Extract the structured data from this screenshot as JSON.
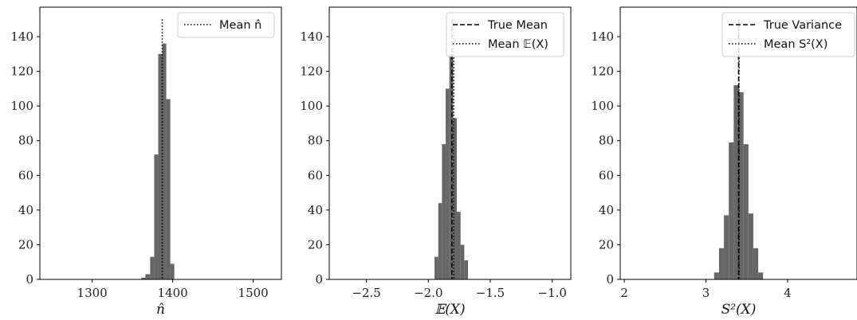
{
  "chart_data": [
    {
      "type": "bar",
      "xlabel": "n̂",
      "xlim": [
        1235,
        1535
      ],
      "ylim": [
        0,
        157
      ],
      "xticks": [
        1300,
        1400,
        1500
      ],
      "xtick_labels": [
        "1300",
        "1400",
        "1500"
      ],
      "yticks": [
        0,
        20,
        40,
        60,
        80,
        100,
        120,
        140
      ],
      "ytick_labels": [
        "0",
        "20",
        "40",
        "60",
        "80",
        "100",
        "120",
        "140"
      ],
      "bar_color": "#666666",
      "bins": [
        {
          "x0": 1361,
          "x1": 1366,
          "value": 1
        },
        {
          "x0": 1366,
          "x1": 1372,
          "value": 3
        },
        {
          "x0": 1372,
          "x1": 1377,
          "value": 13
        },
        {
          "x0": 1377,
          "x1": 1382,
          "value": 72
        },
        {
          "x0": 1382,
          "x1": 1387,
          "value": 130
        },
        {
          "x0": 1387,
          "x1": 1392,
          "value": 136
        },
        {
          "x0": 1392,
          "x1": 1397,
          "value": 104
        },
        {
          "x0": 1397,
          "x1": 1402,
          "value": 9
        }
      ],
      "vlines": [
        {
          "x": 1387,
          "style": "dotted",
          "label": "Mean n̂"
        }
      ],
      "vline_top": 150,
      "legend": {
        "placement": "top-right",
        "entries": [
          {
            "style": "dotted",
            "label": "Mean n̂"
          }
        ]
      }
    },
    {
      "type": "bar",
      "xlabel": "𝔼(X)",
      "xlim": [
        -2.8,
        -0.85
      ],
      "ylim": [
        0,
        157
      ],
      "xticks": [
        -2.5,
        -2.0,
        -1.5,
        -1.0
      ],
      "xtick_labels": [
        "−2.5",
        "−2.0",
        "−1.5",
        "−1.0"
      ],
      "yticks": [
        0,
        20,
        40,
        60,
        80,
        100,
        120,
        140
      ],
      "ytick_labels": [
        "0",
        "20",
        "40",
        "60",
        "80",
        "100",
        "120",
        "140"
      ],
      "bar_color": "#666666",
      "bins": [
        {
          "x0": -1.95,
          "x1": -1.92,
          "value": 13
        },
        {
          "x0": -1.92,
          "x1": -1.89,
          "value": 44
        },
        {
          "x0": -1.89,
          "x1": -1.86,
          "value": 78
        },
        {
          "x0": -1.86,
          "x1": -1.83,
          "value": 110
        },
        {
          "x0": -1.83,
          "x1": -1.8,
          "value": 130
        },
        {
          "x0": -1.8,
          "x1": -1.77,
          "value": 93
        },
        {
          "x0": -1.77,
          "x1": -1.74,
          "value": 39
        },
        {
          "x0": -1.74,
          "x1": -1.71,
          "value": 20
        },
        {
          "x0": -1.71,
          "x1": -1.68,
          "value": 11
        }
      ],
      "vlines": [
        {
          "x": -1.81,
          "style": "dashed",
          "label": "True Mean"
        },
        {
          "x": -1.795,
          "style": "dotted",
          "label": "Mean 𝔼(X)"
        }
      ],
      "vline_top": 150,
      "legend": {
        "placement": "top-right",
        "entries": [
          {
            "style": "dashed",
            "label": "True Mean"
          },
          {
            "style": "dotted",
            "label": "Mean 𝔼(X)"
          }
        ]
      }
    },
    {
      "type": "bar",
      "xlabel": "S²(X)",
      "xlim": [
        1.95,
        4.85
      ],
      "ylim": [
        0,
        157
      ],
      "xticks": [
        2,
        3,
        4
      ],
      "xtick_labels": [
        "2",
        "3",
        "4"
      ],
      "yticks": [
        0,
        20,
        40,
        60,
        80,
        100,
        120,
        140
      ],
      "ytick_labels": [
        "0",
        "20",
        "40",
        "60",
        "80",
        "100",
        "120",
        "140"
      ],
      "bar_color": "#666666",
      "bins": [
        {
          "x0": 3.1,
          "x1": 3.16,
          "value": 4
        },
        {
          "x0": 3.16,
          "x1": 3.22,
          "value": 18
        },
        {
          "x0": 3.22,
          "x1": 3.28,
          "value": 37
        },
        {
          "x0": 3.28,
          "x1": 3.34,
          "value": 79
        },
        {
          "x0": 3.34,
          "x1": 3.4,
          "value": 112
        },
        {
          "x0": 3.4,
          "x1": 3.46,
          "value": 108
        },
        {
          "x0": 3.46,
          "x1": 3.52,
          "value": 78
        },
        {
          "x0": 3.52,
          "x1": 3.58,
          "value": 38
        },
        {
          "x0": 3.58,
          "x1": 3.64,
          "value": 18
        },
        {
          "x0": 3.64,
          "x1": 3.7,
          "value": 4
        }
      ],
      "vlines": [
        {
          "x": 3.4,
          "style": "dashed",
          "label": "True Variance"
        },
        {
          "x": 3.405,
          "style": "dotted",
          "label": "Mean S²(X)"
        }
      ],
      "vline_top": 150,
      "legend": {
        "placement": "top-right",
        "entries": [
          {
            "style": "dashed",
            "label": "True Variance"
          },
          {
            "style": "dotted",
            "label": "Mean S²(X)"
          }
        ]
      }
    }
  ]
}
